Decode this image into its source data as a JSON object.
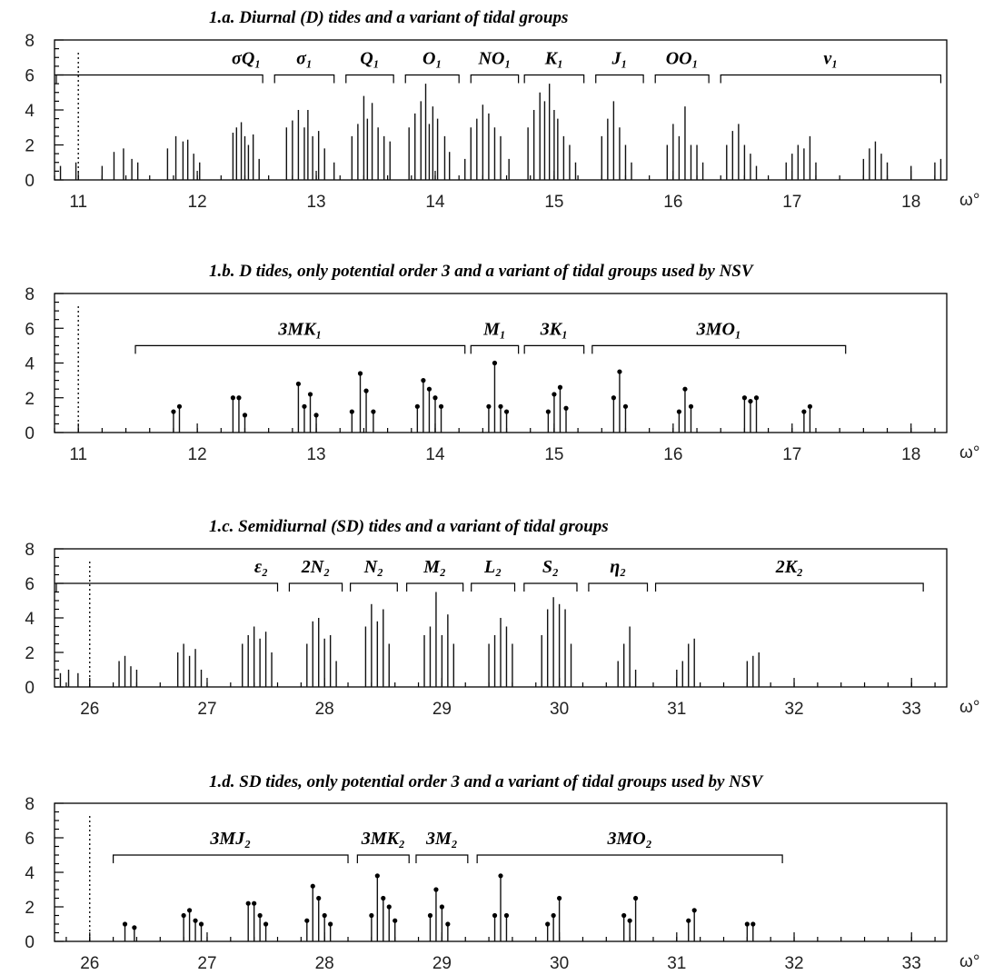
{
  "chart_data": [
    {
      "id": "a",
      "type": "bar",
      "title": "1.a. Diurnal (D) tides and a variant of tidal groups",
      "xlabel": "ω°",
      "xlim": [
        10.8,
        18.3
      ],
      "xticks": [
        "11",
        "12",
        "13",
        "14",
        "15",
        "16",
        "17",
        "18"
      ],
      "ylim": [
        0,
        8
      ],
      "yticks": [
        "0",
        "2",
        "4",
        "6",
        "8"
      ],
      "dotted_x": 11,
      "markers": false,
      "bracket_y": 6,
      "groups": [
        {
          "label": "σQ₁",
          "x1": 10.8,
          "x2": 12.55
        },
        {
          "label": "σ₁",
          "x1": 12.65,
          "x2": 13.15
        },
        {
          "label": "Q₁",
          "x1": 13.25,
          "x2": 13.65
        },
        {
          "label": "O₁",
          "x1": 13.75,
          "x2": 14.2
        },
        {
          "label": "NO₁",
          "x1": 14.3,
          "x2": 14.7
        },
        {
          "label": "K₁",
          "x1": 14.75,
          "x2": 15.25
        },
        {
          "label": "J₁",
          "x1": 15.35,
          "x2": 15.75
        },
        {
          "label": "OO₁",
          "x1": 15.85,
          "x2": 16.3
        },
        {
          "label": "ν₁",
          "x1": 16.4,
          "x2": 18.25
        }
      ],
      "x": [
        10.85,
        10.98,
        11.2,
        11.3,
        11.38,
        11.45,
        11.5,
        11.75,
        11.82,
        11.88,
        11.92,
        11.97,
        12.02,
        12.3,
        12.33,
        12.37,
        12.4,
        12.43,
        12.47,
        12.52,
        12.75,
        12.8,
        12.85,
        12.9,
        12.93,
        12.97,
        13.02,
        13.07,
        13.15,
        13.3,
        13.35,
        13.4,
        13.43,
        13.47,
        13.52,
        13.57,
        13.62,
        13.78,
        13.83,
        13.88,
        13.92,
        13.95,
        13.98,
        14.02,
        14.08,
        14.12,
        14.25,
        14.3,
        14.35,
        14.4,
        14.45,
        14.5,
        14.55,
        14.62,
        14.78,
        14.83,
        14.88,
        14.92,
        14.96,
        15.0,
        15.03,
        15.08,
        15.13,
        15.18,
        15.4,
        15.45,
        15.5,
        15.55,
        15.6,
        15.65,
        15.95,
        16.0,
        16.05,
        16.1,
        16.15,
        16.2,
        16.25,
        16.45,
        16.5,
        16.55,
        16.6,
        16.65,
        16.7,
        16.95,
        17.0,
        17.05,
        17.1,
        17.15,
        17.2,
        17.6,
        17.65,
        17.7,
        17.75,
        17.8,
        18.0,
        18.2,
        18.25
      ],
      "values": [
        0.8,
        1.0,
        0.8,
        1.6,
        1.8,
        1.2,
        1.0,
        1.8,
        2.5,
        2.2,
        2.3,
        1.5,
        1.0,
        2.7,
        3.0,
        3.3,
        2.5,
        2.0,
        2.6,
        1.2,
        3.0,
        3.4,
        4.0,
        3.0,
        4.0,
        2.5,
        2.8,
        1.8,
        1.0,
        2.5,
        3.2,
        4.8,
        3.5,
        4.4,
        3.0,
        2.5,
        2.2,
        3.0,
        3.8,
        4.5,
        5.5,
        3.2,
        4.2,
        3.5,
        2.5,
        1.6,
        1.2,
        3.0,
        3.5,
        4.3,
        3.8,
        3.0,
        2.5,
        1.2,
        3.0,
        4.0,
        5.0,
        4.5,
        5.5,
        4.0,
        3.5,
        2.5,
        2.0,
        1.0,
        2.5,
        3.5,
        4.5,
        3.0,
        2.0,
        1.0,
        2.0,
        3.2,
        2.5,
        4.2,
        2.0,
        2.0,
        1.0,
        2.0,
        2.8,
        3.2,
        2.0,
        1.5,
        0.8,
        1.0,
        1.5,
        2.0,
        1.8,
        2.5,
        1.0,
        1.2,
        1.8,
        2.2,
        1.5,
        1.0,
        0.8,
        1.0,
        1.2
      ]
    },
    {
      "id": "b",
      "type": "bar",
      "title": "1.b. D tides, only potential order 3 and a variant of tidal groups used by NSV",
      "xlabel": "ω°",
      "xlim": [
        10.8,
        18.3
      ],
      "xticks": [
        "11",
        "12",
        "13",
        "14",
        "15",
        "16",
        "17",
        "18"
      ],
      "ylim": [
        0,
        8
      ],
      "yticks": [
        "0",
        "2",
        "4",
        "6",
        "8"
      ],
      "dotted_x": 11,
      "markers": true,
      "bracket_y": 5,
      "groups": [
        {
          "label": "3MK₁",
          "x1": 11.48,
          "x2": 14.25
        },
        {
          "label": "M₁",
          "x1": 14.3,
          "x2": 14.7
        },
        {
          "label": "3K₁",
          "x1": 14.75,
          "x2": 15.25
        },
        {
          "label": "3MO₁",
          "x1": 15.32,
          "x2": 17.45
        }
      ],
      "x": [
        11.8,
        11.85,
        12.3,
        12.35,
        12.4,
        12.85,
        12.9,
        12.95,
        13.0,
        13.3,
        13.37,
        13.42,
        13.48,
        13.85,
        13.9,
        13.95,
        14.0,
        14.05,
        14.45,
        14.5,
        14.55,
        14.6,
        14.95,
        15.0,
        15.05,
        15.1,
        15.5,
        15.55,
        15.6,
        16.05,
        16.1,
        16.15,
        16.6,
        16.65,
        16.7,
        17.1,
        17.15
      ],
      "values": [
        1.2,
        1.5,
        2.0,
        2.0,
        1.0,
        2.8,
        1.5,
        2.2,
        1.0,
        1.2,
        3.4,
        2.4,
        1.2,
        1.5,
        3.0,
        2.5,
        2.0,
        1.5,
        1.5,
        4.0,
        1.5,
        1.2,
        1.2,
        2.2,
        2.6,
        1.4,
        2.0,
        3.5,
        1.5,
        1.2,
        2.5,
        1.5,
        2.0,
        1.8,
        2.0,
        1.2,
        1.5
      ]
    },
    {
      "id": "c",
      "type": "bar",
      "title": "1.c. Semidiurnal (SD) tides and a variant of tidal groups",
      "xlabel": "ω°",
      "xlim": [
        25.7,
        33.3
      ],
      "xticks": [
        "26",
        "27",
        "28",
        "29",
        "30",
        "31",
        "32",
        "33"
      ],
      "ylim": [
        0,
        8
      ],
      "yticks": [
        "0",
        "2",
        "4",
        "6",
        "8"
      ],
      "dotted_x": 26,
      "markers": false,
      "bracket_y": 6,
      "groups": [
        {
          "label": "ε₂",
          "x1": 25.7,
          "x2": 27.6
        },
        {
          "label": "2N₂",
          "x1": 27.7,
          "x2": 28.15
        },
        {
          "label": "N₂",
          "x1": 28.22,
          "x2": 28.62
        },
        {
          "label": "M₂",
          "x1": 28.7,
          "x2": 29.18
        },
        {
          "label": "L₂",
          "x1": 29.25,
          "x2": 29.62
        },
        {
          "label": "S₂",
          "x1": 29.7,
          "x2": 30.15
        },
        {
          "label": "η₂",
          "x1": 30.25,
          "x2": 30.75
        },
        {
          "label": "2K₂",
          "x1": 30.82,
          "x2": 33.1
        }
      ],
      "x": [
        25.75,
        25.82,
        25.9,
        26.25,
        26.3,
        26.35,
        26.4,
        26.75,
        26.8,
        26.85,
        26.9,
        26.95,
        27.3,
        27.35,
        27.4,
        27.45,
        27.5,
        27.55,
        27.85,
        27.9,
        27.95,
        28.0,
        28.05,
        28.1,
        28.35,
        28.4,
        28.45,
        28.5,
        28.55,
        28.85,
        28.9,
        28.95,
        29.0,
        29.05,
        29.1,
        29.4,
        29.45,
        29.5,
        29.55,
        29.6,
        29.85,
        29.9,
        29.95,
        30.0,
        30.05,
        30.1,
        30.5,
        30.55,
        30.6,
        30.65,
        31.0,
        31.05,
        31.1,
        31.15,
        31.6,
        31.65,
        31.7
      ],
      "values": [
        0.8,
        1.0,
        0.8,
        1.5,
        1.8,
        1.2,
        1.0,
        2.0,
        2.5,
        1.8,
        2.2,
        1.0,
        2.5,
        3.0,
        3.5,
        2.8,
        3.2,
        2.0,
        2.5,
        3.8,
        4.0,
        2.8,
        3.0,
        1.5,
        3.5,
        4.8,
        3.8,
        4.5,
        2.5,
        3.0,
        3.5,
        5.5,
        3.0,
        4.2,
        2.5,
        2.5,
        3.0,
        4.0,
        3.5,
        2.5,
        3.0,
        4.5,
        5.2,
        4.8,
        4.5,
        2.5,
        1.5,
        2.5,
        3.5,
        1.0,
        1.0,
        1.5,
        2.5,
        2.8,
        1.5,
        1.8,
        2.0
      ]
    },
    {
      "id": "d",
      "type": "bar",
      "title": "1.d. SD tides, only potential order 3 and a variant of tidal groups used by NSV",
      "xlabel": "ω°",
      "xlim": [
        25.7,
        33.3
      ],
      "xticks": [
        "26",
        "27",
        "28",
        "29",
        "30",
        "31",
        "32",
        "33"
      ],
      "ylim": [
        0,
        8
      ],
      "yticks": [
        "0",
        "2",
        "4",
        "6",
        "8"
      ],
      "dotted_x": 26,
      "markers": true,
      "bracket_y": 5,
      "groups": [
        {
          "label": "3MJ₂",
          "x1": 26.2,
          "x2": 28.2
        },
        {
          "label": "3MK₂",
          "x1": 28.28,
          "x2": 28.72
        },
        {
          "label": "3M₂",
          "x1": 28.78,
          "x2": 29.22
        },
        {
          "label": "3MO₂",
          "x1": 29.3,
          "x2": 31.9
        }
      ],
      "x": [
        26.3,
        26.38,
        26.8,
        26.85,
        26.9,
        26.95,
        27.35,
        27.4,
        27.45,
        27.5,
        27.85,
        27.9,
        27.95,
        28.0,
        28.05,
        28.4,
        28.45,
        28.5,
        28.55,
        28.6,
        28.9,
        28.95,
        29.0,
        29.05,
        29.45,
        29.5,
        29.55,
        29.9,
        29.95,
        30.0,
        30.55,
        30.6,
        30.65,
        31.1,
        31.15,
        31.6,
        31.65
      ],
      "values": [
        1.0,
        0.8,
        1.5,
        1.8,
        1.2,
        1.0,
        2.2,
        2.2,
        1.5,
        1.0,
        1.2,
        3.2,
        2.5,
        1.5,
        1.0,
        1.5,
        3.8,
        2.5,
        2.0,
        1.2,
        1.5,
        3.0,
        2.0,
        1.0,
        1.5,
        3.8,
        1.5,
        1.0,
        1.5,
        2.5,
        1.5,
        1.2,
        2.5,
        1.2,
        1.8,
        1.0,
        1.0
      ]
    }
  ]
}
